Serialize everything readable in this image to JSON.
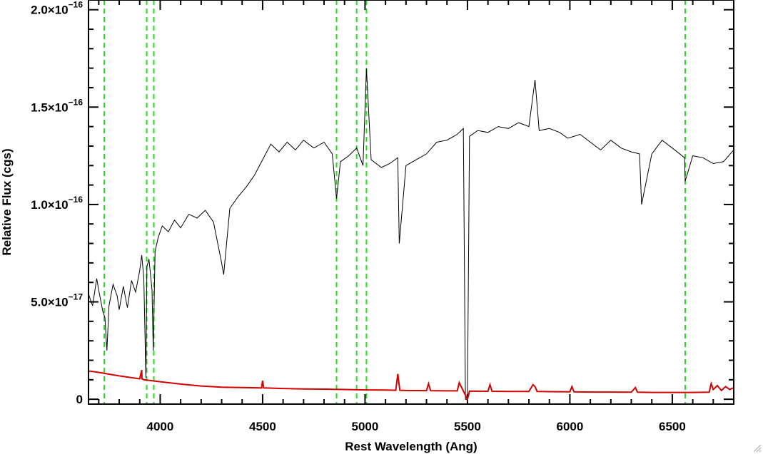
{
  "chart_data": {
    "type": "line",
    "title": "",
    "xlabel": "Rest Wavelength (Ang)",
    "ylabel": "Relative Flux (cgs)",
    "xlim": [
      3650,
      6800
    ],
    "ylim": [
      -2.5e-18,
      2.05e-16
    ],
    "x_ticks": [
      {
        "value": 4000,
        "label": "4000"
      },
      {
        "value": 4500,
        "label": "4500"
      },
      {
        "value": 5000,
        "label": "5000"
      },
      {
        "value": 5500,
        "label": "5500"
      },
      {
        "value": 6000,
        "label": "6000"
      },
      {
        "value": 6500,
        "label": "6500"
      }
    ],
    "y_ticks": [
      {
        "value": 0,
        "mantissa": "0",
        "exponent": ""
      },
      {
        "value": 5e-17,
        "mantissa": "5.0×10",
        "exponent": "−17"
      },
      {
        "value": 1e-16,
        "mantissa": "1.0×10",
        "exponent": "−16"
      },
      {
        "value": 1.5e-16,
        "mantissa": "1.5×10",
        "exponent": "−16"
      },
      {
        "value": 2e-16,
        "mantissa": "2.0×10",
        "exponent": "−16"
      }
    ],
    "grid": false,
    "series": [
      {
        "role": "spectrum",
        "color": "#000000",
        "x": [
          3650,
          3670,
          3690,
          3700,
          3720,
          3730,
          3740,
          3750,
          3770,
          3790,
          3800,
          3820,
          3840,
          3860,
          3880,
          3900,
          3910,
          3920,
          3930,
          3935,
          3945,
          3960,
          3966,
          3975,
          3990,
          4010,
          4040,
          4070,
          4100,
          4140,
          4180,
          4220,
          4260,
          4300,
          4310,
          4340,
          4380,
          4420,
          4460,
          4500,
          4540,
          4580,
          4620,
          4660,
          4700,
          4750,
          4800,
          4840,
          4861,
          4880,
          4920,
          4959,
          4990,
          5007,
          5030,
          5080,
          5120,
          5160,
          5167,
          5200,
          5250,
          5300,
          5350,
          5400,
          5450,
          5480,
          5490,
          5500,
          5510,
          5550,
          5600,
          5650,
          5700,
          5750,
          5800,
          5830,
          5850,
          5900,
          5950,
          5990,
          6050,
          6100,
          6150,
          6200,
          6250,
          6300,
          6340,
          6350,
          6400,
          6450,
          6500,
          6560,
          6563,
          6600,
          6650,
          6700,
          6750,
          6800
        ],
        "y": [
          5.4e-17,
          4.8e-17,
          6.2e-17,
          5.6e-17,
          4.5e-17,
          4.2e-17,
          2.5e-17,
          4.8e-17,
          5.9e-17,
          5.3e-17,
          4.6e-17,
          5.8e-17,
          4.7e-17,
          6.1e-17,
          5.5e-17,
          6.6e-17,
          7.4e-17,
          6.2e-17,
          1.1e-17,
          6.8e-17,
          7.2e-17,
          5.6e-17,
          2.5e-17,
          7.6e-17,
          8.3e-17,
          8.9e-17,
          8.6e-17,
          9.2e-17,
          8.8e-17,
          9.5e-17,
          9.3e-17,
          9.7e-17,
          9.1e-17,
          7e-17,
          6.4e-17,
          9.8e-17,
          1.04e-16,
          1.09e-16,
          1.15e-16,
          1.23e-16,
          1.31e-16,
          1.27e-16,
          1.32e-16,
          1.28e-16,
          1.33e-16,
          1.29e-16,
          1.32e-16,
          1.26e-16,
          1.03e-16,
          1.22e-16,
          1.25e-16,
          1.29e-16,
          1.2e-16,
          1.7e-16,
          1.23e-16,
          1.19e-16,
          1.21e-16,
          1.24e-16,
          8e-17,
          1.2e-16,
          1.23e-16,
          1.26e-16,
          1.32e-16,
          1.33e-16,
          1.36e-16,
          1.39e-16,
          0.0,
          0.0,
          1.35e-16,
          1.38e-16,
          1.37e-16,
          1.4e-16,
          1.39e-16,
          1.42e-16,
          1.4e-16,
          1.64e-16,
          1.38e-16,
          1.39e-16,
          1.37e-16,
          1.34e-16,
          1.36e-16,
          1.32e-16,
          1.28e-16,
          1.33e-16,
          1.29e-16,
          1.27e-16,
          1.26e-16,
          1e-16,
          1.26e-16,
          1.33e-16,
          1.29e-16,
          1.24e-16,
          1.12e-16,
          1.25e-16,
          1.24e-16,
          1.21e-16,
          1.22e-16,
          1.28e-16
        ]
      },
      {
        "role": "error",
        "color": "#d40000",
        "x": [
          3650,
          3700,
          3800,
          3900,
          3910,
          3911,
          3920,
          4000,
          4100,
          4200,
          4300,
          4400,
          4495,
          4500,
          4505,
          4600,
          4700,
          4800,
          4900,
          5000,
          5100,
          5150,
          5160,
          5170,
          5200,
          5300,
          5310,
          5320,
          5400,
          5450,
          5460,
          5500,
          5510,
          5600,
          5610,
          5620,
          5700,
          5800,
          5820,
          5830,
          5840,
          5900,
          6000,
          6010,
          6020,
          6100,
          6200,
          6300,
          6320,
          6330,
          6400,
          6500,
          6600,
          6680,
          6690,
          6700,
          6720,
          6740,
          6760,
          6780,
          6800
        ],
        "y": [
          1.45e-17,
          1.38e-17,
          1.2e-17,
          1.05e-17,
          1.5e-17,
          1.05e-17,
          1e-17,
          9e-18,
          7.8e-18,
          6.8e-18,
          6.2e-18,
          6e-18,
          5.8e-18,
          9.5e-18,
          5.8e-18,
          5.5e-18,
          5.3e-18,
          5.2e-18,
          5e-18,
          4.8e-18,
          4.7e-18,
          4.6e-18,
          1.3e-17,
          4.6e-18,
          4.5e-18,
          4.4e-18,
          8e-18,
          4.4e-18,
          4.3e-18,
          4.3e-18,
          8.5e-18,
          0.0,
          4.2e-18,
          4.1e-18,
          7.5e-18,
          4.1e-18,
          4e-18,
          4e-18,
          7.5e-18,
          6.5e-18,
          4e-18,
          3.9e-18,
          3.8e-18,
          6.5e-18,
          3.8e-18,
          3.7e-18,
          3.7e-18,
          3.6e-18,
          6e-18,
          3.6e-18,
          3.5e-18,
          3.5e-18,
          3.5e-18,
          3.6e-18,
          8e-18,
          5e-18,
          7e-18,
          4.5e-18,
          6.5e-18,
          5e-18,
          6e-18
        ]
      }
    ],
    "vlines": [
      3727,
      3934,
      3969,
      4861,
      4959,
      5007,
      6563
    ],
    "vline_color": "#22dd22"
  }
}
